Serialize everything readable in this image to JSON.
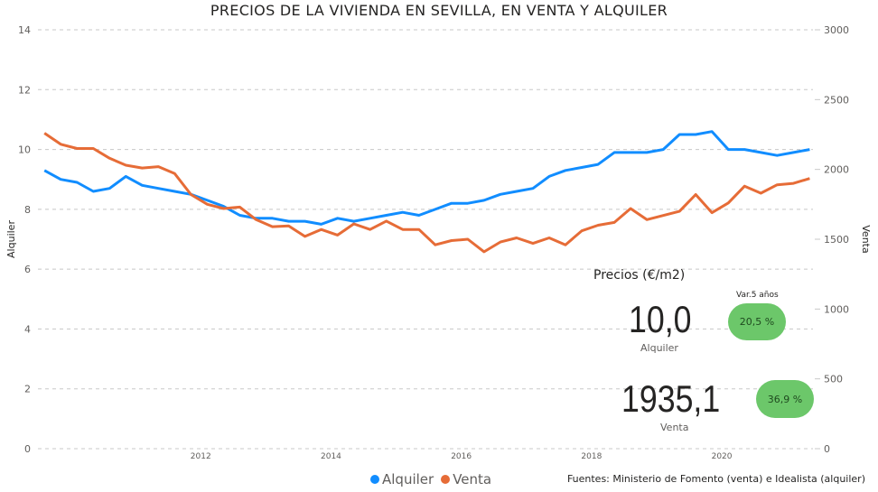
{
  "chart_data": {
    "type": "line",
    "title": "PRECIOS DE LA VIVIENDA EN SEVILLA, EN VENTA Y ALQUILER",
    "ylabel_left": "Alquiler",
    "ylabel_right": "Venta",
    "ylim_left": [
      0,
      14
    ],
    "ylim_right": [
      0,
      3000
    ],
    "yticks_left": [
      "0",
      "2",
      "4",
      "6",
      "8",
      "10",
      "12",
      "14"
    ],
    "yticks_right": [
      "0",
      "500",
      "1000",
      "1500",
      "2000",
      "2500",
      "3000"
    ],
    "xticks": [
      "2012",
      "2014",
      "2016",
      "2018",
      "2020"
    ],
    "xrange": [
      2010.0,
      2021.9
    ],
    "grid": true,
    "legend_placement": "bottom",
    "x_start": 2010.1,
    "x_step": 0.25,
    "series": [
      {
        "name": "Alquiler",
        "axis": "left",
        "color": "#118dff",
        "values": [
          9.3,
          9.0,
          8.9,
          8.6,
          8.7,
          9.1,
          8.8,
          8.7,
          8.6,
          8.5,
          8.3,
          8.1,
          7.8,
          7.7,
          7.7,
          7.6,
          7.6,
          7.5,
          7.7,
          7.6,
          7.7,
          7.8,
          7.9,
          7.8,
          8.0,
          8.2,
          8.2,
          8.3,
          8.5,
          8.6,
          8.7,
          9.1,
          9.3,
          9.4,
          9.5,
          9.9,
          9.9,
          9.9,
          10.0,
          10.5,
          10.5,
          10.6,
          10.0,
          10.0,
          9.9,
          9.8,
          9.9,
          10.0
        ]
      },
      {
        "name": "Venta",
        "axis": "right",
        "color": "#e66c37",
        "values": [
          2260,
          2180,
          2150,
          2150,
          2080,
          2030,
          2010,
          2020,
          1970,
          1820,
          1750,
          1720,
          1730,
          1640,
          1590,
          1595,
          1520,
          1570,
          1530,
          1610,
          1570,
          1630,
          1570,
          1570,
          1460,
          1490,
          1500,
          1410,
          1480,
          1510,
          1470,
          1510,
          1460,
          1560,
          1600,
          1620,
          1720,
          1640,
          1670,
          1700,
          1820,
          1690,
          1760,
          1880,
          1830,
          1890,
          1900,
          1935
        ]
      }
    ]
  },
  "kpi": {
    "title": "Precios (€/m2)",
    "var_label": "Var.5 años",
    "alquiler_value": "10,0",
    "alquiler_label": "Alquiler",
    "alquiler_var": "20,5 %",
    "venta_value": "1935,1",
    "venta_label": "Venta",
    "venta_var": "36,9 %",
    "pill_color": "#6cc76a"
  },
  "source": "Fuentes: Ministerio de Fomento (venta) e Idealista (alquiler)"
}
